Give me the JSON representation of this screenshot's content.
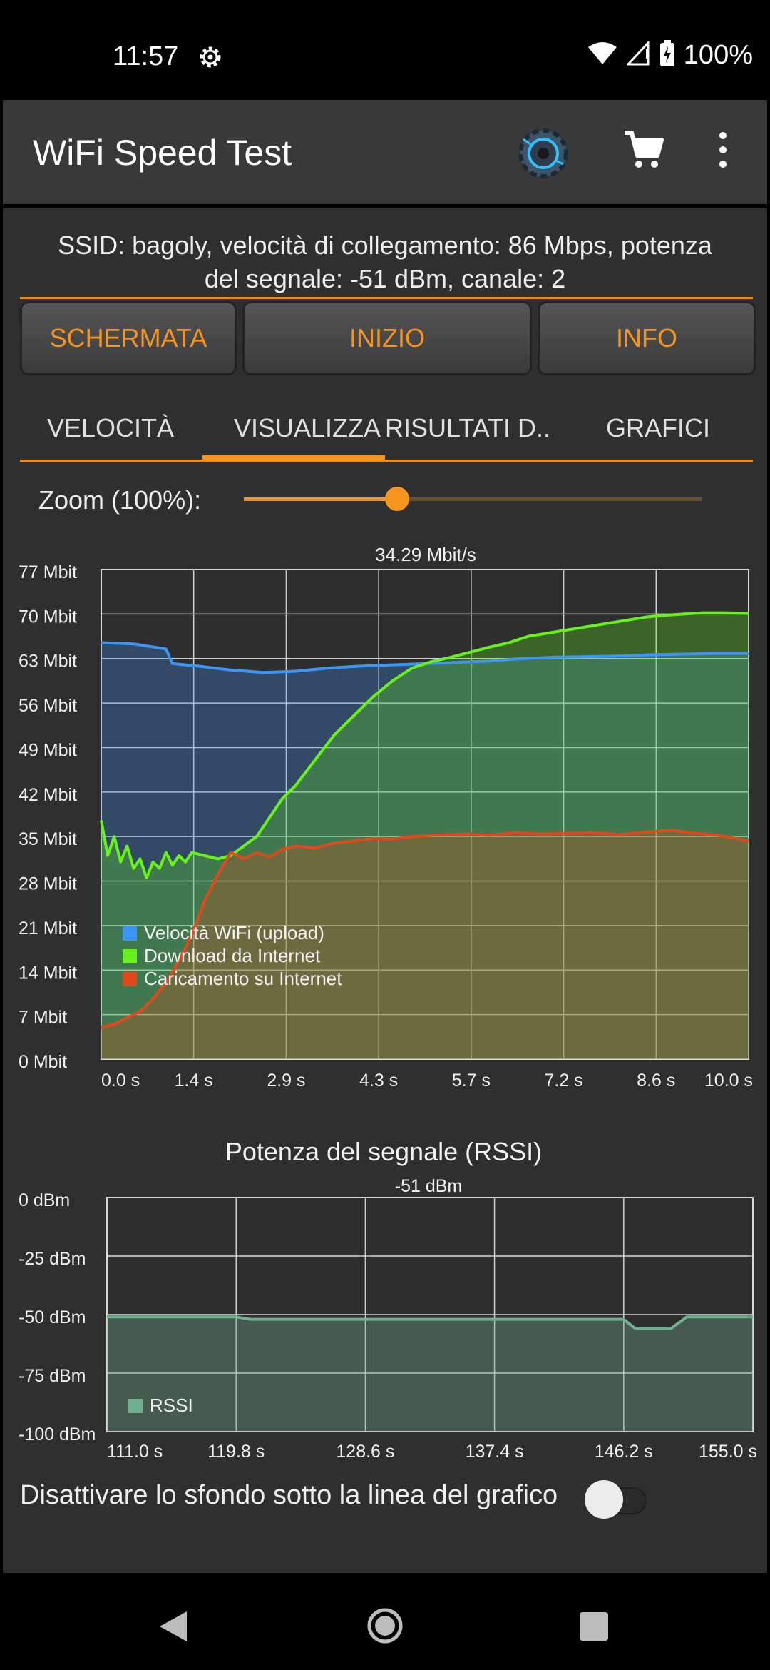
{
  "status": {
    "time": "11:57",
    "battery_pct": "100%"
  },
  "appbar": {
    "title": "WiFi Speed Test",
    "icons": [
      "settings-gear-icon",
      "shopping-cart-icon",
      "more-vert-icon"
    ]
  },
  "ssid_line1": "SSID: bagoly, velocità di collegamento: 86 Mbps, potenza",
  "ssid_line2": "del segnale: -51 dBm, canale: 2",
  "buttons": {
    "screen": "SCHERMATA",
    "start": "INIZIO",
    "info": "INFO"
  },
  "tabs": [
    {
      "label": "VELOCITÀ"
    },
    {
      "label": "VISUALIZZA"
    },
    {
      "label": "RISULTATI D.."
    },
    {
      "label": "GRAFICI"
    }
  ],
  "zoom": {
    "label": "Zoom (100%):",
    "value": 0.34
  },
  "toggle_label": "Disattivare lo sfondo sotto la linea del grafico",
  "toggle_on": false,
  "colors": {
    "accent": "#f7941d",
    "wifi": "#3d95f5",
    "download": "#66f21a",
    "upload": "#e04a1a",
    "rssi": "#6fb08e"
  },
  "chart_data": [
    {
      "type": "line",
      "title": "34.29 Mbit/s",
      "ylim": [
        0,
        77
      ],
      "xlim": [
        0,
        10
      ],
      "yticks": [
        "77 Mbit",
        "70 Mbit",
        "63 Mbit",
        "56 Mbit",
        "49 Mbit",
        "42 Mbit",
        "35 Mbit",
        "28 Mbit",
        "21 Mbit",
        "14 Mbit",
        "7 Mbit",
        "0 Mbit"
      ],
      "xticks": [
        "0.0 s",
        "1.4 s",
        "2.9 s",
        "4.3 s",
        "5.7 s",
        "7.2 s",
        "8.6 s",
        "10.0 s"
      ],
      "legend": [
        "Velocità WiFi (upload)",
        "Download da Internet",
        "Caricamento su Internet"
      ],
      "series": [
        {
          "name": "Velocità WiFi (upload)",
          "color": "#3d95f5",
          "x": [
            0,
            0.5,
            1.0,
            1.1,
            1.5,
            2.0,
            2.5,
            3.0,
            3.5,
            4.0,
            4.5,
            5.0,
            5.5,
            6.0,
            6.5,
            7.0,
            7.5,
            8.0,
            8.5,
            9.0,
            9.5,
            10.0
          ],
          "y": [
            65.5,
            65.3,
            64.5,
            62.2,
            61.8,
            61.2,
            60.8,
            61.0,
            61.5,
            61.8,
            62.0,
            62.2,
            62.4,
            62.6,
            63.0,
            63.2,
            63.3,
            63.4,
            63.6,
            63.7,
            63.8,
            63.8
          ]
        },
        {
          "name": "Download da Internet",
          "color": "#66f21a",
          "x": [
            0,
            0.1,
            0.2,
            0.3,
            0.4,
            0.5,
            0.6,
            0.7,
            0.8,
            0.9,
            1.0,
            1.1,
            1.2,
            1.3,
            1.4,
            1.6,
            1.8,
            2.0,
            2.2,
            2.4,
            2.6,
            2.8,
            3.0,
            3.3,
            3.6,
            3.9,
            4.2,
            4.5,
            4.8,
            5.1,
            5.4,
            5.7,
            6.0,
            6.3,
            6.6,
            6.9,
            7.2,
            7.5,
            7.8,
            8.1,
            8.4,
            8.7,
            9.0,
            9.3,
            9.6,
            10.0
          ],
          "y": [
            37.5,
            32,
            35,
            31,
            33.5,
            30,
            31.5,
            28.5,
            31,
            30,
            32.5,
            30.5,
            32,
            31,
            32.5,
            32,
            31.5,
            32,
            33.5,
            35,
            38,
            41,
            43,
            47,
            51,
            54,
            57,
            59.5,
            61.5,
            62.5,
            63.2,
            64,
            64.8,
            65.5,
            66.5,
            67,
            67.5,
            68,
            68.5,
            69,
            69.5,
            69.8,
            70,
            70.2,
            70.2,
            70.1
          ]
        },
        {
          "name": "Caricamento su Internet",
          "color": "#e04a1a",
          "x": [
            0,
            0.2,
            0.4,
            0.6,
            0.8,
            1.0,
            1.2,
            1.4,
            1.6,
            1.8,
            2.0,
            2.2,
            2.4,
            2.6,
            2.8,
            3.0,
            3.3,
            3.6,
            3.9,
            4.2,
            4.5,
            4.8,
            5.1,
            5.4,
            5.7,
            6.0,
            6.4,
            6.8,
            7.2,
            7.6,
            8.0,
            8.4,
            8.8,
            9.2,
            9.6,
            10.0
          ],
          "y": [
            5,
            5.5,
            6.5,
            7.5,
            9.5,
            12,
            15.5,
            19.5,
            25,
            29,
            32.5,
            31.5,
            32.5,
            31.8,
            33,
            33.5,
            33.2,
            34,
            34.3,
            34.7,
            34.6,
            35,
            35.2,
            35.3,
            35.4,
            35.2,
            35.6,
            35.4,
            35.5,
            35.6,
            35.3,
            35.7,
            36,
            35.5,
            35.1,
            34.3
          ]
        }
      ]
    },
    {
      "type": "line",
      "title": "Potenza del segnale (RSSI)",
      "subtitle": "-51 dBm",
      "ylim": [
        -100,
        0
      ],
      "xlim": [
        111,
        155
      ],
      "yticks": [
        "0 dBm",
        "-25 dBm",
        "-50 dBm",
        "-75 dBm",
        "-100 dBm"
      ],
      "xticks": [
        "111.0 s",
        "119.8 s",
        "128.6 s",
        "137.4 s",
        "146.2 s",
        "155.0 s"
      ],
      "legend": [
        "RSSI"
      ],
      "series": [
        {
          "name": "RSSI",
          "color": "#6fb08e",
          "x": [
            111,
            119.8,
            120.8,
            146.2,
            147,
            149.4,
            150.5,
            155
          ],
          "y": [
            -51,
            -51,
            -52,
            -52,
            -56,
            -56,
            -51,
            -51
          ]
        }
      ]
    }
  ]
}
